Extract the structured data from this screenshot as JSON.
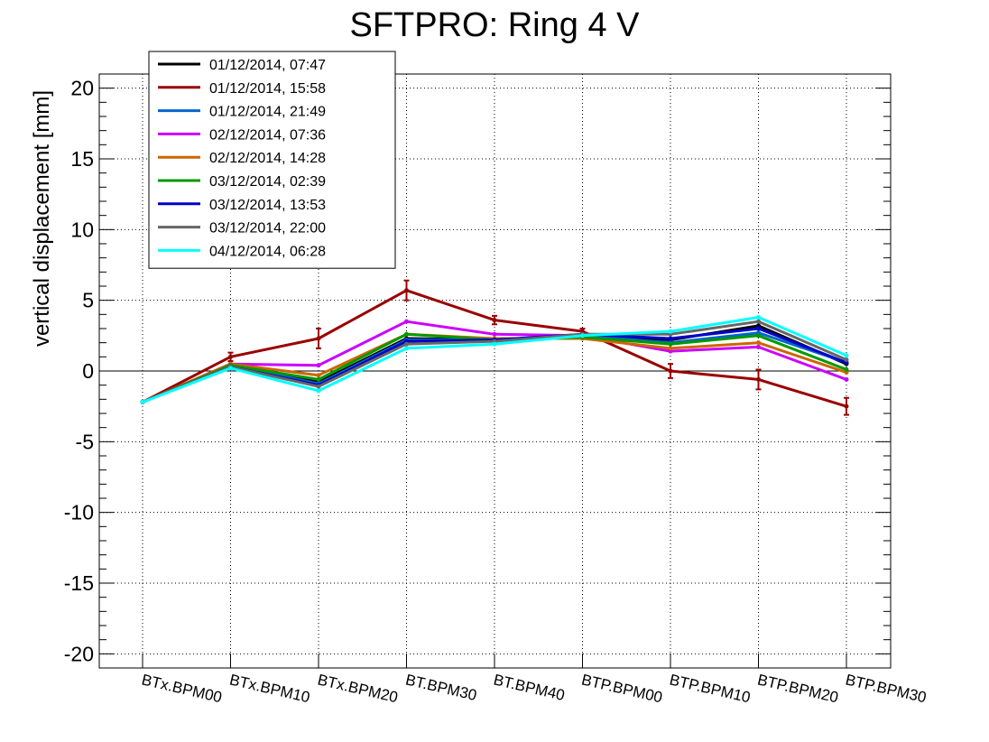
{
  "chart_data": {
    "type": "line",
    "title": "SFTPRO: Ring 4 V",
    "xlabel": "",
    "ylabel": "vertical displacement [mm]",
    "ylim": [
      -21,
      21
    ],
    "yticks": [
      20,
      15,
      10,
      5,
      0,
      -5,
      -10,
      -15,
      -20
    ],
    "grid": true,
    "legend_position": "top-left",
    "categories": [
      "BTx.BPM00",
      "BTx.BPM10",
      "BTx.BPM20",
      "BT.BPM30",
      "BT.BPM40",
      "BTP.BPM00",
      "BTP.BPM10",
      "BTP.BPM20",
      "BTP.BPM30"
    ],
    "series": [
      {
        "name": "01/12/2014, 07:47",
        "color": "#000000",
        "values": [
          -2.2,
          0.5,
          -0.8,
          2.3,
          2.2,
          2.5,
          2.2,
          3.2,
          0.5
        ]
      },
      {
        "name": "01/12/2014, 15:58",
        "color": "#990000",
        "values": [
          -2.2,
          1.0,
          2.3,
          5.7,
          3.6,
          2.8,
          0.0,
          -0.6,
          -2.5
        ],
        "errors": [
          0.1,
          0.3,
          0.7,
          0.7,
          0.3,
          0.2,
          0.5,
          0.7,
          0.6
        ]
      },
      {
        "name": "01/12/2014, 21:49",
        "color": "#0066cc",
        "values": [
          -2.2,
          0.4,
          -0.9,
          2.2,
          2.2,
          2.5,
          2.0,
          2.7,
          0.6
        ]
      },
      {
        "name": "02/12/2014, 07:36",
        "color": "#cc00ff",
        "values": [
          -2.2,
          0.5,
          0.4,
          3.5,
          2.6,
          2.5,
          1.4,
          1.7,
          -0.6
        ]
      },
      {
        "name": "02/12/2014, 14:28",
        "color": "#cc6600",
        "values": [
          -2.2,
          0.5,
          -0.3,
          2.6,
          2.3,
          2.3,
          1.6,
          2.0,
          -0.1
        ]
      },
      {
        "name": "03/12/2014, 02:39",
        "color": "#009900",
        "values": [
          -2.2,
          0.4,
          -0.6,
          2.6,
          2.2,
          2.4,
          1.9,
          2.5,
          0.1
        ]
      },
      {
        "name": "03/12/2014, 13:53",
        "color": "#0000cc",
        "values": [
          -2.2,
          0.3,
          -1.0,
          2.1,
          2.2,
          2.6,
          2.3,
          3.0,
          0.6
        ]
      },
      {
        "name": "03/12/2014, 22:00",
        "color": "#666666",
        "values": [
          -2.2,
          0.3,
          -1.1,
          1.9,
          2.1,
          2.6,
          2.6,
          3.5,
          0.8
        ]
      },
      {
        "name": "04/12/2014, 06:28",
        "color": "#00ffff",
        "values": [
          -2.2,
          0.2,
          -1.4,
          1.6,
          1.9,
          2.5,
          2.8,
          3.8,
          1.1
        ]
      }
    ]
  }
}
